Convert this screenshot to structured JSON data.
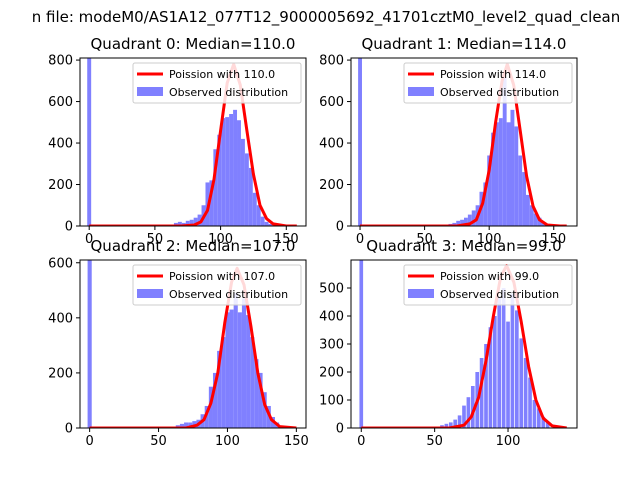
{
  "figure_title": "n file: modeM0/AS1A12_077T12_9000005692_41701cztM0_level2_quad_clean",
  "chart_data": [
    {
      "type": "bar",
      "title": "Quadrant 0: Median=110.0",
      "median": 110.0,
      "xlim": [
        -7,
        165
      ],
      "ylim": [
        0,
        810
      ],
      "xticks": [
        0,
        50,
        100,
        150
      ],
      "yticks": [
        0,
        200,
        400,
        600,
        800
      ],
      "legend": {
        "location": "top-right",
        "entries": [
          "Poission with 110.0",
          "Observed distribution"
        ]
      },
      "colors": {
        "poisson": "#ff0000",
        "observed": "#8080ff"
      },
      "bin_width": 3,
      "histogram": [
        {
          "x": 0,
          "y": 810
        },
        {
          "x": 66,
          "y": 15
        },
        {
          "x": 69,
          "y": 20
        },
        {
          "x": 72,
          "y": 15
        },
        {
          "x": 75,
          "y": 25
        },
        {
          "x": 78,
          "y": 30
        },
        {
          "x": 81,
          "y": 40
        },
        {
          "x": 84,
          "y": 55
        },
        {
          "x": 87,
          "y": 100
        },
        {
          "x": 90,
          "y": 210
        },
        {
          "x": 93,
          "y": 220
        },
        {
          "x": 96,
          "y": 370
        },
        {
          "x": 99,
          "y": 440
        },
        {
          "x": 102,
          "y": 520
        },
        {
          "x": 105,
          "y": 525
        },
        {
          "x": 108,
          "y": 540
        },
        {
          "x": 111,
          "y": 560
        },
        {
          "x": 114,
          "y": 510
        },
        {
          "x": 117,
          "y": 420
        },
        {
          "x": 120,
          "y": 350
        },
        {
          "x": 123,
          "y": 280
        },
        {
          "x": 126,
          "y": 160
        },
        {
          "x": 129,
          "y": 100
        },
        {
          "x": 132,
          "y": 45
        },
        {
          "x": 135,
          "y": 20
        },
        {
          "x": 138,
          "y": 10
        }
      ],
      "poisson_curve": [
        {
          "x": 0,
          "y": 0
        },
        {
          "x": 70,
          "y": 0
        },
        {
          "x": 80,
          "y": 5
        },
        {
          "x": 85,
          "y": 20
        },
        {
          "x": 90,
          "y": 75
        },
        {
          "x": 95,
          "y": 225
        },
        {
          "x": 100,
          "y": 460
        },
        {
          "x": 105,
          "y": 690
        },
        {
          "x": 110,
          "y": 780
        },
        {
          "x": 115,
          "y": 680
        },
        {
          "x": 120,
          "y": 460
        },
        {
          "x": 125,
          "y": 250
        },
        {
          "x": 130,
          "y": 100
        },
        {
          "x": 135,
          "y": 35
        },
        {
          "x": 140,
          "y": 10
        },
        {
          "x": 150,
          "y": 0
        },
        {
          "x": 158,
          "y": 0
        }
      ]
    },
    {
      "type": "bar",
      "title": "Quadrant 1: Median=114.0",
      "median": 114.0,
      "xlim": [
        -7,
        168
      ],
      "ylim": [
        0,
        810
      ],
      "xticks": [
        0,
        50,
        100,
        150
      ],
      "yticks": [
        0,
        200,
        400,
        600,
        800
      ],
      "legend": {
        "location": "top-right",
        "entries": [
          "Poission with 114.0",
          "Observed distribution"
        ]
      },
      "colors": {
        "poisson": "#ff0000",
        "observed": "#8080ff"
      },
      "bin_width": 3,
      "histogram": [
        {
          "x": 0,
          "y": 810
        },
        {
          "x": 70,
          "y": 10
        },
        {
          "x": 73,
          "y": 15
        },
        {
          "x": 76,
          "y": 25
        },
        {
          "x": 79,
          "y": 30
        },
        {
          "x": 82,
          "y": 40
        },
        {
          "x": 85,
          "y": 55
        },
        {
          "x": 88,
          "y": 75
        },
        {
          "x": 91,
          "y": 100
        },
        {
          "x": 94,
          "y": 165
        },
        {
          "x": 97,
          "y": 210
        },
        {
          "x": 100,
          "y": 340
        },
        {
          "x": 103,
          "y": 450
        },
        {
          "x": 106,
          "y": 500
        },
        {
          "x": 109,
          "y": 520
        },
        {
          "x": 112,
          "y": 720
        },
        {
          "x": 115,
          "y": 500
        },
        {
          "x": 118,
          "y": 560
        },
        {
          "x": 121,
          "y": 480
        },
        {
          "x": 124,
          "y": 340
        },
        {
          "x": 127,
          "y": 260
        },
        {
          "x": 130,
          "y": 150
        },
        {
          "x": 133,
          "y": 100
        },
        {
          "x": 136,
          "y": 60
        },
        {
          "x": 139,
          "y": 40
        },
        {
          "x": 142,
          "y": 15
        }
      ],
      "poisson_curve": [
        {
          "x": 0,
          "y": 0
        },
        {
          "x": 75,
          "y": 0
        },
        {
          "x": 85,
          "y": 10
        },
        {
          "x": 90,
          "y": 30
        },
        {
          "x": 95,
          "y": 110
        },
        {
          "x": 100,
          "y": 270
        },
        {
          "x": 105,
          "y": 500
        },
        {
          "x": 110,
          "y": 700
        },
        {
          "x": 114,
          "y": 780
        },
        {
          "x": 119,
          "y": 680
        },
        {
          "x": 124,
          "y": 460
        },
        {
          "x": 129,
          "y": 240
        },
        {
          "x": 134,
          "y": 95
        },
        {
          "x": 139,
          "y": 30
        },
        {
          "x": 145,
          "y": 5
        },
        {
          "x": 155,
          "y": 0
        },
        {
          "x": 160,
          "y": 0
        }
      ]
    },
    {
      "type": "bar",
      "title": "Quadrant 2: Median=107.0",
      "median": 107.0,
      "xlim": [
        -7,
        157
      ],
      "ylim": [
        0,
        610
      ],
      "xticks": [
        0,
        50,
        100,
        150
      ],
      "yticks": [
        0,
        200,
        400,
        600
      ],
      "legend": {
        "location": "top-right",
        "entries": [
          "Poission with 107.0",
          "Observed distribution"
        ]
      },
      "colors": {
        "poisson": "#ff0000",
        "observed": "#8080ff"
      },
      "bin_width": 3,
      "histogram": [
        {
          "x": 0,
          "y": 610
        },
        {
          "x": 64,
          "y": 10
        },
        {
          "x": 67,
          "y": 15
        },
        {
          "x": 70,
          "y": 20
        },
        {
          "x": 73,
          "y": 20
        },
        {
          "x": 76,
          "y": 25
        },
        {
          "x": 79,
          "y": 30
        },
        {
          "x": 82,
          "y": 50
        },
        {
          "x": 85,
          "y": 80
        },
        {
          "x": 88,
          "y": 150
        },
        {
          "x": 91,
          "y": 200
        },
        {
          "x": 94,
          "y": 280
        },
        {
          "x": 97,
          "y": 330
        },
        {
          "x": 100,
          "y": 420
        },
        {
          "x": 103,
          "y": 430
        },
        {
          "x": 106,
          "y": 490
        },
        {
          "x": 109,
          "y": 420
        },
        {
          "x": 112,
          "y": 470
        },
        {
          "x": 115,
          "y": 410
        },
        {
          "x": 118,
          "y": 330
        },
        {
          "x": 121,
          "y": 250
        },
        {
          "x": 124,
          "y": 200
        },
        {
          "x": 127,
          "y": 130
        },
        {
          "x": 130,
          "y": 80
        },
        {
          "x": 133,
          "y": 40
        },
        {
          "x": 136,
          "y": 20
        }
      ],
      "poisson_curve": [
        {
          "x": 0,
          "y": 0
        },
        {
          "x": 70,
          "y": 0
        },
        {
          "x": 78,
          "y": 10
        },
        {
          "x": 83,
          "y": 30
        },
        {
          "x": 88,
          "y": 90
        },
        {
          "x": 93,
          "y": 200
        },
        {
          "x": 98,
          "y": 380
        },
        {
          "x": 103,
          "y": 530
        },
        {
          "x": 107,
          "y": 580
        },
        {
          "x": 112,
          "y": 520
        },
        {
          "x": 117,
          "y": 370
        },
        {
          "x": 122,
          "y": 200
        },
        {
          "x": 127,
          "y": 85
        },
        {
          "x": 132,
          "y": 30
        },
        {
          "x": 138,
          "y": 5
        },
        {
          "x": 150,
          "y": 0
        }
      ]
    },
    {
      "type": "bar",
      "title": "Quadrant 3: Median=99.0",
      "median": 99.0,
      "xlim": [
        -7,
        147
      ],
      "ylim": [
        0,
        600
      ],
      "xticks": [
        0,
        50,
        100
      ],
      "yticks": [
        0,
        100,
        200,
        300,
        400,
        500
      ],
      "legend": {
        "location": "top-right",
        "entries": [
          "Poission with 99.0",
          "Observed distribution"
        ]
      },
      "colors": {
        "poisson": "#ff0000",
        "observed": "#8080ff"
      },
      "bin_width": 2.5,
      "histogram": [
        {
          "x": 0,
          "y": 600
        },
        {
          "x": 55,
          "y": 10
        },
        {
          "x": 58,
          "y": 15
        },
        {
          "x": 61,
          "y": 20
        },
        {
          "x": 64,
          "y": 30
        },
        {
          "x": 67,
          "y": 45
        },
        {
          "x": 70,
          "y": 80
        },
        {
          "x": 73,
          "y": 110
        },
        {
          "x": 76,
          "y": 150
        },
        {
          "x": 79,
          "y": 200
        },
        {
          "x": 82,
          "y": 250
        },
        {
          "x": 85,
          "y": 300
        },
        {
          "x": 88,
          "y": 360
        },
        {
          "x": 91,
          "y": 400
        },
        {
          "x": 94,
          "y": 470
        },
        {
          "x": 97,
          "y": 500
        },
        {
          "x": 100,
          "y": 380
        },
        {
          "x": 103,
          "y": 480
        },
        {
          "x": 106,
          "y": 420
        },
        {
          "x": 109,
          "y": 320
        },
        {
          "x": 112,
          "y": 250
        },
        {
          "x": 115,
          "y": 180
        },
        {
          "x": 118,
          "y": 100
        },
        {
          "x": 121,
          "y": 70
        },
        {
          "x": 124,
          "y": 40
        },
        {
          "x": 127,
          "y": 20
        }
      ],
      "poisson_curve": [
        {
          "x": 0,
          "y": 0
        },
        {
          "x": 60,
          "y": 0
        },
        {
          "x": 70,
          "y": 10
        },
        {
          "x": 75,
          "y": 40
        },
        {
          "x": 80,
          "y": 110
        },
        {
          "x": 85,
          "y": 240
        },
        {
          "x": 90,
          "y": 400
        },
        {
          "x": 95,
          "y": 540
        },
        {
          "x": 99,
          "y": 580
        },
        {
          "x": 104,
          "y": 520
        },
        {
          "x": 109,
          "y": 380
        },
        {
          "x": 114,
          "y": 220
        },
        {
          "x": 119,
          "y": 100
        },
        {
          "x": 124,
          "y": 35
        },
        {
          "x": 130,
          "y": 8
        },
        {
          "x": 140,
          "y": 0
        }
      ]
    }
  ]
}
